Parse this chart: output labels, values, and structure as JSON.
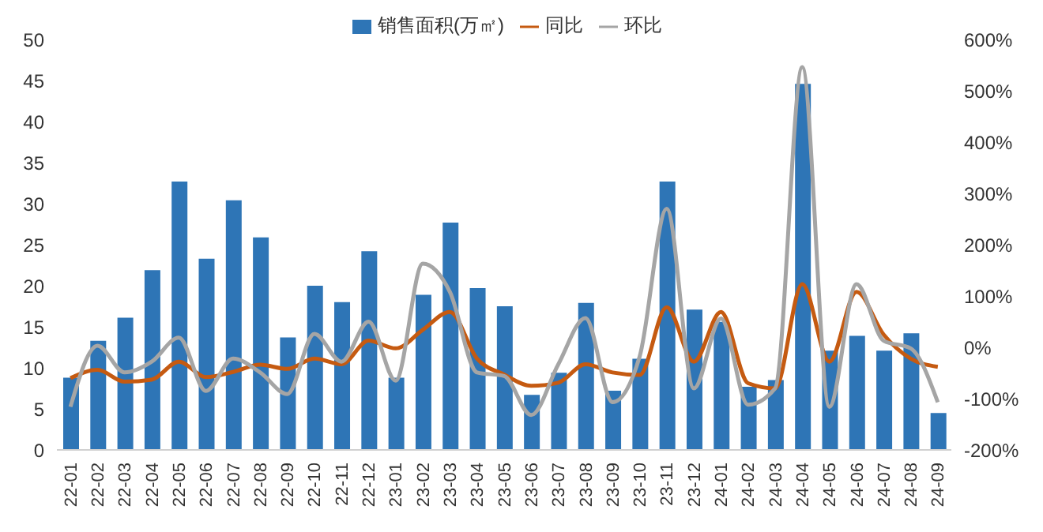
{
  "chart_data": {
    "type": "bar",
    "categories": [
      "22-01",
      "22-02",
      "22-03",
      "22-04",
      "22-05",
      "22-06",
      "22-07",
      "22-08",
      "22-09",
      "22-10",
      "22-11",
      "22-12",
      "23-01",
      "23-02",
      "23-03",
      "23-04",
      "23-05",
      "23-06",
      "23-07",
      "23-08",
      "23-09",
      "23-10",
      "23-11",
      "23-12",
      "24-01",
      "24-02",
      "24-03",
      "24-04",
      "24-05",
      "24-06",
      "24-07",
      "24-08",
      "24-09"
    ],
    "series": [
      {
        "name": "销售面积(万㎡)",
        "color": "#2e75b6",
        "values": [
          8.8,
          13.3,
          16.1,
          21.9,
          32.7,
          23.3,
          30.4,
          25.9,
          13.7,
          20.0,
          18.0,
          24.2,
          8.8,
          18.9,
          27.7,
          19.7,
          17.5,
          6.7,
          9.4,
          17.9,
          7.2,
          11.1,
          32.7,
          17.1,
          15.6,
          7.7,
          8.5,
          44.6,
          12.1,
          13.9,
          12.1,
          14.2,
          4.5
        ]
      },
      {
        "name": "同比",
        "type": "line",
        "axis": "y2",
        "color": "#c55a11",
        "values": [
          -60,
          -44,
          -67,
          -63,
          -28,
          -58,
          -48,
          -34,
          -42,
          -22,
          -33,
          13,
          -2,
          34,
          69,
          -22,
          -53,
          -75,
          -69,
          -33,
          -49,
          -54,
          78,
          -28,
          69,
          -70,
          -80,
          123,
          -28,
          108,
          25,
          -22,
          -38
        ]
      },
      {
        "name": "环比",
        "type": "line",
        "axis": "y2",
        "color": "#a5a5a5",
        "values": [
          -116,
          3,
          -49,
          -28,
          19,
          -85,
          -22,
          -49,
          -91,
          26,
          -28,
          50,
          -65,
          163,
          108,
          -49,
          -56,
          -132,
          -33,
          57,
          -107,
          -18,
          270,
          -80,
          56,
          -112,
          -80,
          546,
          -116,
          123,
          13,
          -2,
          -107
        ]
      }
    ],
    "ylim": [
      0,
      50
    ],
    "yticks": [
      0,
      5,
      10,
      15,
      20,
      25,
      30,
      35,
      40,
      45,
      50
    ],
    "y2lim": [
      -200,
      600
    ],
    "y2ticks": [
      {
        "value": -200,
        "label": "-200%"
      },
      {
        "value": -100,
        "label": "-100%"
      },
      {
        "value": 0,
        "label": "0%"
      },
      {
        "value": 100,
        "label": "100%"
      },
      {
        "value": 200,
        "label": "200%"
      },
      {
        "value": 300,
        "label": "300%"
      },
      {
        "value": 400,
        "label": "400%"
      },
      {
        "value": 500,
        "label": "500%"
      },
      {
        "value": 600,
        "label": "600%"
      }
    ],
    "grid": false,
    "legend": "top",
    "marker": "none",
    "line_style": "solid"
  }
}
